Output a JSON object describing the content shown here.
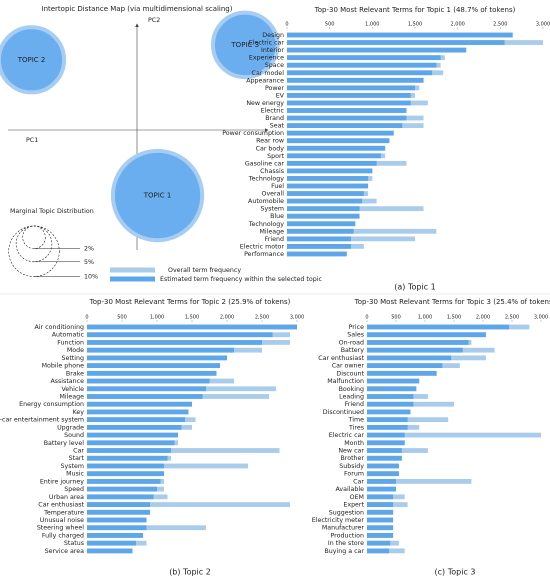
{
  "chart_data": [
    {
      "type": "bubble",
      "title": "Intertopic Distance Map (via multidimensional scaling)",
      "x_label": "PC1",
      "y_label": "PC2",
      "labels": [
        "TOPIC 1",
        "TOPIC 2",
        "TOPIC 3"
      ],
      "x": [
        0.15,
        -0.77,
        0.79
      ],
      "y": [
        -0.57,
        0.61,
        0.74
      ],
      "sizes": [
        48.7,
        25.9,
        25.4
      ],
      "color": "#6aaef0",
      "xlim": [
        -1,
        1
      ],
      "ylim": [
        -1,
        1
      ],
      "size_legend": {
        "title": "Marginal Topic Distribution",
        "values": [
          2,
          5,
          10
        ],
        "value_labels": [
          "2%",
          "5%",
          "10%"
        ]
      }
    },
    {
      "type": "bar",
      "orientation": "horizontal",
      "title": "Top-30 Most Relevant Terms for Topic 1 (48.7% of tokens)",
      "caption": "(a) Topic 1",
      "categories": [
        "Design",
        "Electric car",
        "Interior",
        "Experience",
        "Space",
        "Car model",
        "Appearance",
        "Power",
        "EV",
        "New energy",
        "Electric",
        "Brand",
        "Seat",
        "Power consumption",
        "Rear row",
        "Car body",
        "Sport",
        "Gasoline car",
        "Chassis",
        "Technology",
        "Fuel",
        "Overall",
        "Automobile",
        "System",
        "Blue",
        "Technology",
        "Mileage",
        "Friend",
        "Electric motor",
        "Performance"
      ],
      "series": [
        {
          "name": "Overall term frequency",
          "color": "#a9cbec",
          "values": [
            2650,
            3000,
            2100,
            1850,
            1800,
            1830,
            1600,
            1550,
            1500,
            1650,
            1400,
            1600,
            1600,
            1250,
            1200,
            1150,
            1150,
            1400,
            1000,
            1000,
            950,
            950,
            1050,
            1600,
            850,
            800,
            1750,
            1500,
            900,
            700
          ]
        },
        {
          "name": "Estimated term frequency within the selected topic",
          "color": "#5ea6ea",
          "values": [
            2640,
            2550,
            2100,
            1800,
            1750,
            1700,
            1600,
            1500,
            1450,
            1450,
            1400,
            1400,
            1350,
            1250,
            1200,
            1150,
            1100,
            1050,
            1000,
            950,
            950,
            900,
            880,
            850,
            850,
            800,
            780,
            750,
            750,
            700
          ]
        }
      ],
      "xlim": [
        0,
        3000
      ],
      "xticks": [
        0,
        500,
        {
          "value": 1000,
          "label": "1,000"
        },
        {
          "value": 1500,
          "label": "1,500"
        },
        {
          "value": 2000,
          "label": "2,000"
        },
        {
          "value": 2500,
          "label": "2,500"
        },
        {
          "value": 3000,
          "label": "3,000"
        }
      ]
    },
    {
      "type": "bar",
      "orientation": "horizontal",
      "title": "Top-30 Most Relevant Terms for Topic 2 (25.9% of tokens)",
      "caption": "(b) Topic 2",
      "categories": [
        "Air conditioning",
        "Automatic",
        "Function",
        "Mode",
        "Setting",
        "Mobile phone",
        "Brake",
        "Assistance",
        "Vehicle",
        "Mileage",
        "Energy consumption",
        "Key",
        "In-car entertainment system",
        "Upgrade",
        "Sound",
        "Battery level",
        "Car",
        "Start",
        "System",
        "Music",
        "Entire journey",
        "Speed",
        "Urban area",
        "Car enthusiast",
        "Temperature",
        "Unusual noise",
        "Steering wheel",
        "Fully charged",
        "Status",
        "Service area"
      ],
      "series": [
        {
          "color": "#a9cbec",
          "values": [
            3000,
            2900,
            2900,
            2500,
            2000,
            1900,
            1850,
            2100,
            2700,
            2600,
            1500,
            1450,
            1550,
            1500,
            1300,
            1300,
            2750,
            1200,
            2300,
            1100,
            1100,
            1100,
            1150,
            2900,
            900,
            850,
            1700,
            800,
            850,
            650
          ]
        },
        {
          "color": "#5ea6ea",
          "values": [
            3000,
            2650,
            2500,
            2100,
            2000,
            1900,
            1850,
            1750,
            1700,
            1650,
            1500,
            1450,
            1400,
            1350,
            1300,
            1250,
            1200,
            1150,
            1100,
            1100,
            1050,
            1000,
            950,
            900,
            900,
            850,
            850,
            800,
            700,
            650
          ]
        }
      ],
      "xlim": [
        0,
        3000
      ],
      "xticks": [
        0,
        500,
        {
          "value": 1000,
          "label": "1,000"
        },
        {
          "value": 1500,
          "label": "1,500"
        },
        {
          "value": 2000,
          "label": "2,000"
        },
        {
          "value": 2500,
          "label": "2,500"
        },
        {
          "value": 3000,
          "label": "3,000"
        }
      ]
    },
    {
      "type": "bar",
      "orientation": "horizontal",
      "title": "Top-30 Most Relevant Terms for Topic 3 (25.4% of tokens)",
      "caption": "(c) Topic 3",
      "categories": [
        "Price",
        "Sales",
        "On-road",
        "Battery",
        "Car enthusiast",
        "Car owner",
        "Discount",
        "Malfunction",
        "Booking",
        "Leading",
        "Friend",
        "Discontinued",
        "Time",
        "Tires",
        "Electric car",
        "Month",
        "New car",
        "Brother",
        "Subsidy",
        "Forum",
        "Car",
        "Available",
        "OEM",
        "Expert",
        "Suggestion",
        "Electricity meter",
        "Manufacturer",
        "Production",
        "In the store",
        "Buying a car"
      ],
      "series": [
        {
          "color": "#a9cbec",
          "values": [
            2800,
            2050,
            1800,
            2200,
            2050,
            1600,
            1200,
            900,
            850,
            1050,
            1500,
            750,
            1400,
            900,
            3000,
            650,
            1050,
            600,
            550,
            550,
            1800,
            500,
            650,
            700,
            450,
            450,
            450,
            450,
            550,
            650
          ]
        },
        {
          "color": "#5ea6ea",
          "values": [
            2450,
            2050,
            1750,
            1650,
            1450,
            1300,
            1200,
            900,
            850,
            800,
            800,
            750,
            700,
            700,
            650,
            650,
            600,
            600,
            550,
            550,
            500,
            500,
            450,
            450,
            450,
            450,
            450,
            450,
            400,
            380
          ]
        }
      ],
      "xlim": [
        0,
        3000
      ],
      "xticks": [
        0,
        500,
        {
          "value": 1000,
          "label": "1,000"
        },
        {
          "value": 1500,
          "label": "1,500"
        },
        {
          "value": 2000,
          "label": "2,000"
        },
        {
          "value": 2500,
          "label": "2,500"
        },
        {
          "value": 3000,
          "label": "3,000"
        }
      ]
    }
  ]
}
